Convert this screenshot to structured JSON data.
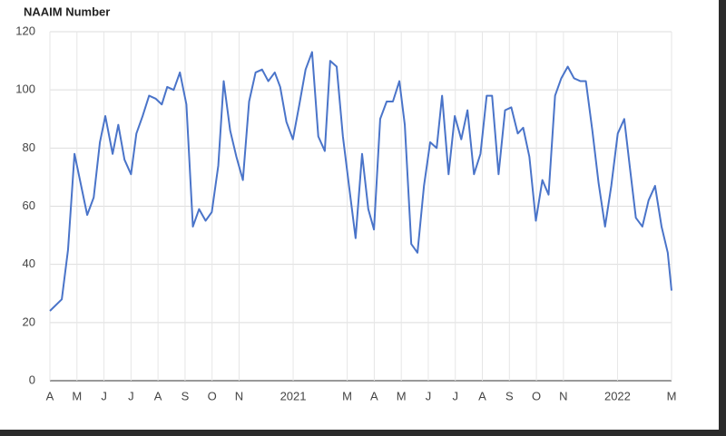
{
  "chart_data": {
    "type": "line",
    "title": "NAAIM Number",
    "x": [
      0,
      0.44,
      0.67,
      0.91,
      1.38,
      1.62,
      1.85,
      2.05,
      2.32,
      2.53,
      2.76,
      3.0,
      3.2,
      3.43,
      3.67,
      3.91,
      4.14,
      4.34,
      4.58,
      4.81,
      5.05,
      5.29,
      5.52,
      5.76,
      5.99,
      6.23,
      6.43,
      6.67,
      6.9,
      7.14,
      7.37,
      7.61,
      7.85,
      8.08,
      8.32,
      8.52,
      8.75,
      8.99,
      9.23,
      9.46,
      9.7,
      9.93,
      10.17,
      10.37,
      10.61,
      10.84,
      11.08,
      11.31,
      11.55,
      11.78,
      11.99,
      12.22,
      12.46,
      12.69,
      12.93,
      13.13,
      13.37,
      13.6,
      13.84,
      14.07,
      14.31,
      14.51,
      14.75,
      14.98,
      15.22,
      15.45,
      15.69,
      15.93,
      16.16,
      16.36,
      16.6,
      16.84,
      17.07,
      17.31,
      17.51,
      17.74,
      17.98,
      18.22,
      18.45,
      18.69,
      18.92,
      19.16,
      19.39,
      19.63,
      19.83,
      20.07,
      20.3,
      20.54,
      20.77,
      21.01,
      21.25,
      21.45,
      21.68,
      21.92,
      22.15,
      22.39,
      22.63,
      22.86,
      23
    ],
    "series": [
      {
        "name": "NAAIM Number",
        "color": "#4a74c9",
        "values": [
          24,
          28,
          45,
          78,
          57,
          63,
          82,
          91,
          78,
          88,
          76,
          71,
          85,
          91,
          98,
          97,
          95,
          101,
          100,
          106,
          95,
          53,
          59,
          55,
          58,
          74,
          103,
          86,
          77,
          69,
          96,
          106,
          107,
          103,
          106,
          101,
          89,
          83,
          95,
          107,
          113,
          84,
          79,
          110,
          108,
          84,
          66,
          49,
          78,
          59,
          52,
          90,
          96,
          96,
          103,
          88,
          47,
          44,
          67,
          82,
          80,
          98,
          71,
          91,
          83,
          93,
          71,
          78,
          98,
          98,
          71,
          93,
          94,
          85,
          87,
          77,
          55,
          69,
          64,
          98,
          104,
          108,
          104,
          103,
          103,
          86,
          68,
          53,
          67,
          85,
          90,
          74,
          56,
          53,
          62,
          67,
          53,
          44,
          31
        ]
      }
    ],
    "xlim": [
      0,
      23
    ],
    "xticks": [
      {
        "value": 0,
        "label": "A"
      },
      {
        "value": 1,
        "label": "M"
      },
      {
        "value": 2,
        "label": "J"
      },
      {
        "value": 3,
        "label": "J"
      },
      {
        "value": 4,
        "label": "A"
      },
      {
        "value": 5,
        "label": "S"
      },
      {
        "value": 6,
        "label": "O"
      },
      {
        "value": 7,
        "label": "N"
      },
      {
        "value": 9,
        "label": "2021"
      },
      {
        "value": 11,
        "label": "M"
      },
      {
        "value": 12,
        "label": "A"
      },
      {
        "value": 13,
        "label": "M"
      },
      {
        "value": 14,
        "label": "J"
      },
      {
        "value": 15,
        "label": "J"
      },
      {
        "value": 16,
        "label": "A"
      },
      {
        "value": 17,
        "label": "S"
      },
      {
        "value": 18,
        "label": "O"
      },
      {
        "value": 19,
        "label": "N"
      },
      {
        "value": 21,
        "label": "2022"
      },
      {
        "value": 23,
        "label": "M"
      }
    ],
    "ylim": [
      0,
      120
    ],
    "yticks": [
      0,
      20,
      40,
      60,
      80,
      100,
      120
    ],
    "grid": true
  }
}
